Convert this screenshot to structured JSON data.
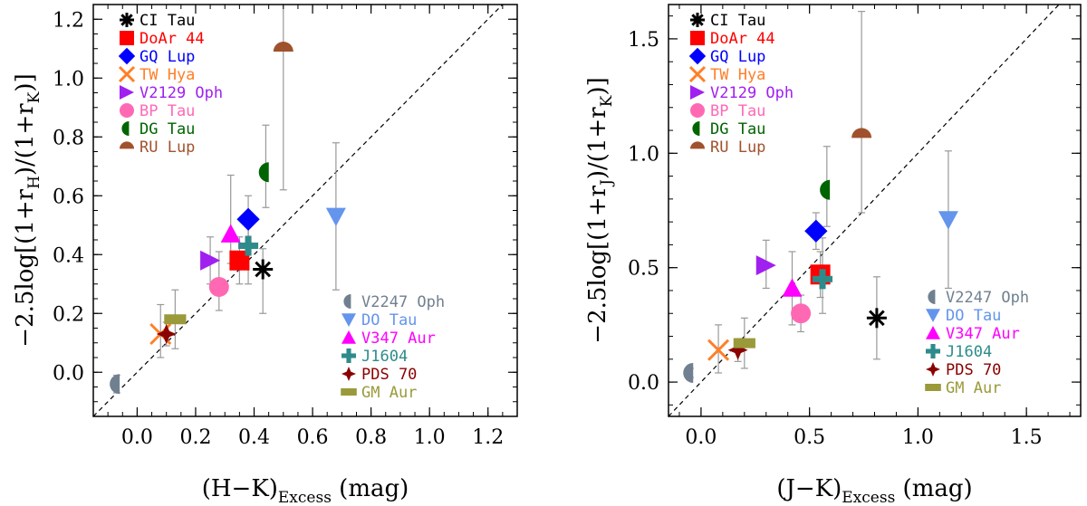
{
  "chart_data": [
    {
      "type": "scatter",
      "title": "",
      "xlabel": {
        "main": "(H−K)",
        "sub": "Excess",
        "unit": " (mag)"
      },
      "ylabel": {
        "prefix": "−2.5log[(1+r",
        "sub1": "H",
        "mid": ")/(1+r",
        "sub2": "K",
        "suffix": ")]"
      },
      "xlim": [
        -0.15,
        1.3
      ],
      "ylim": [
        -0.15,
        1.25
      ],
      "xticks": [
        "0.0",
        "0.2",
        "0.4",
        "0.6",
        "0.8",
        "1.0",
        "1.2"
      ],
      "yticks": [
        "0.0",
        "0.2",
        "0.4",
        "0.6",
        "0.8",
        "1.0",
        "1.2"
      ],
      "reference_line": "1:1",
      "legend_top": [
        "CI Tau",
        "DoAr 44",
        "GQ Lup",
        "TW Hya",
        "V2129 Oph",
        "BP Tau",
        "DG Tau",
        "RU Lup"
      ],
      "legend_bottom": [
        "V2247 Oph",
        "DO Tau",
        "V347 Aur",
        "J1604",
        "PDS 70",
        "GM Aur"
      ],
      "points": [
        {
          "name": "CI Tau",
          "x": 0.43,
          "y": 0.35,
          "err_low": 0.15,
          "err_high": 0.07
        },
        {
          "name": "DoAr 44",
          "x": 0.35,
          "y": 0.38,
          "err_low": 0.08,
          "err_high": 0.08
        },
        {
          "name": "GQ Lup",
          "x": 0.38,
          "y": 0.52,
          "err_low": 0.08,
          "err_high": 0.08
        },
        {
          "name": "TW Hya",
          "x": 0.08,
          "y": 0.13,
          "err_low": 0.08,
          "err_high": 0.1
        },
        {
          "name": "V2129 Oph",
          "x": 0.25,
          "y": 0.38,
          "err_low": 0.08,
          "err_high": 0.08
        },
        {
          "name": "BP Tau",
          "x": 0.28,
          "y": 0.29,
          "err_low": 0.08,
          "err_high": 0.12
        },
        {
          "name": "DG Tau",
          "x": 0.44,
          "y": 0.68,
          "err_low": 0.12,
          "err_high": 0.16
        },
        {
          "name": "RU Lup",
          "x": 0.5,
          "y": 1.1,
          "err_low": 0.48,
          "err_high": 0.2
        },
        {
          "name": "V2247 Oph",
          "x": -0.07,
          "y": -0.04,
          "err_low": 0.03,
          "err_high": 0.03
        },
        {
          "name": "DO Tau",
          "x": 0.68,
          "y": 0.53,
          "err_low": 0.25,
          "err_high": 0.25
        },
        {
          "name": "V347 Aur",
          "x": 0.32,
          "y": 0.47,
          "err_low": 0.1,
          "err_high": 0.2
        },
        {
          "name": "J1604",
          "x": 0.38,
          "y": 0.43,
          "err_low": 0.13,
          "err_high": 0.1
        },
        {
          "name": "PDS 70",
          "x": 0.1,
          "y": 0.13,
          "err_low": 0.04,
          "err_high": 0.04
        },
        {
          "name": "GM Aur",
          "x": 0.13,
          "y": 0.18,
          "err_low": 0.1,
          "err_high": 0.1
        }
      ]
    },
    {
      "type": "scatter",
      "title": "",
      "xlabel": {
        "main": "(J−K)",
        "sub": "Excess",
        "unit": " (mag)"
      },
      "ylabel": {
        "prefix": "−2.5log[(1+r",
        "sub1": "J",
        "mid": ")/(1+r",
        "sub2": "K",
        "suffix": ")]"
      },
      "xlim": [
        -0.15,
        1.75
      ],
      "ylim": [
        -0.15,
        1.65
      ],
      "xticks": [
        "0.0",
        "0.5",
        "1.0",
        "1.5"
      ],
      "yticks": [
        "0.0",
        "0.5",
        "1.0",
        "1.5"
      ],
      "reference_line": "1:1",
      "legend_top": [
        "CI Tau",
        "DoAr 44",
        "GQ Lup",
        "TW Hya",
        "V2129 Oph",
        "BP Tau",
        "DG Tau",
        "RU Lup"
      ],
      "legend_bottom": [
        "V2247 Oph",
        "DO Tau",
        "V347 Aur",
        "J1604",
        "PDS 70",
        "GM Aur"
      ],
      "points": [
        {
          "name": "CI Tau",
          "x": 0.81,
          "y": 0.28,
          "err_low": 0.18,
          "err_high": 0.18
        },
        {
          "name": "DoAr 44",
          "x": 0.55,
          "y": 0.47,
          "err_low": 0.1,
          "err_high": 0.1
        },
        {
          "name": "GQ Lup",
          "x": 0.53,
          "y": 0.66,
          "err_low": 0.08,
          "err_high": 0.08
        },
        {
          "name": "TW Hya",
          "x": 0.08,
          "y": 0.14,
          "err_low": 0.1,
          "err_high": 0.11
        },
        {
          "name": "V2129 Oph",
          "x": 0.3,
          "y": 0.51,
          "err_low": 0.1,
          "err_high": 0.11
        },
        {
          "name": "BP Tau",
          "x": 0.46,
          "y": 0.3,
          "err_low": 0.08,
          "err_high": 0.08
        },
        {
          "name": "DG Tau",
          "x": 0.58,
          "y": 0.84,
          "err_low": 0.16,
          "err_high": 0.19
        },
        {
          "name": "RU Lup",
          "x": 0.74,
          "y": 1.08,
          "err_low": 0.34,
          "err_high": 0.54
        },
        {
          "name": "V2247 Oph",
          "x": -0.05,
          "y": 0.04,
          "err_low": 0.02,
          "err_high": 0.02
        },
        {
          "name": "DO Tau",
          "x": 1.14,
          "y": 0.71,
          "err_low": 0.3,
          "err_high": 0.3
        },
        {
          "name": "V347 Aur",
          "x": 0.42,
          "y": 0.41,
          "err_low": 0.16,
          "err_high": 0.16
        },
        {
          "name": "J1604",
          "x": 0.56,
          "y": 0.45,
          "err_low": 0.15,
          "err_high": 0.18
        },
        {
          "name": "PDS 70",
          "x": 0.17,
          "y": 0.14,
          "err_low": 0.05,
          "err_high": 0.05
        },
        {
          "name": "GM Aur",
          "x": 0.2,
          "y": 0.17,
          "err_low": 0.11,
          "err_high": 0.11
        }
      ]
    }
  ],
  "series_styles": {
    "CI Tau": {
      "marker": "asterisk",
      "color": "#000000"
    },
    "DoAr 44": {
      "marker": "square",
      "color": "#ff0000"
    },
    "GQ Lup": {
      "marker": "diamond",
      "color": "#0000ff"
    },
    "TW Hya": {
      "marker": "x",
      "color": "#ff7f27"
    },
    "V2129 Oph": {
      "marker": "tri-right",
      "color": "#a020f0"
    },
    "BP Tau": {
      "marker": "circle",
      "color": "#ff69b4"
    },
    "DG Tau": {
      "marker": "half-left",
      "color": "#006400"
    },
    "RU Lup": {
      "marker": "half-top",
      "color": "#a0522d"
    },
    "V2247 Oph": {
      "marker": "half-left",
      "color": "#708090"
    },
    "DO Tau": {
      "marker": "tri-down",
      "color": "#6495ed"
    },
    "V347 Aur": {
      "marker": "tri-up",
      "color": "#ff00ff"
    },
    "J1604": {
      "marker": "plus",
      "color": "#2e8b8b"
    },
    "PDS 70": {
      "marker": "star4",
      "color": "#8b0000"
    },
    "GM Aur": {
      "marker": "bar",
      "color": "#9a9a3a"
    }
  }
}
